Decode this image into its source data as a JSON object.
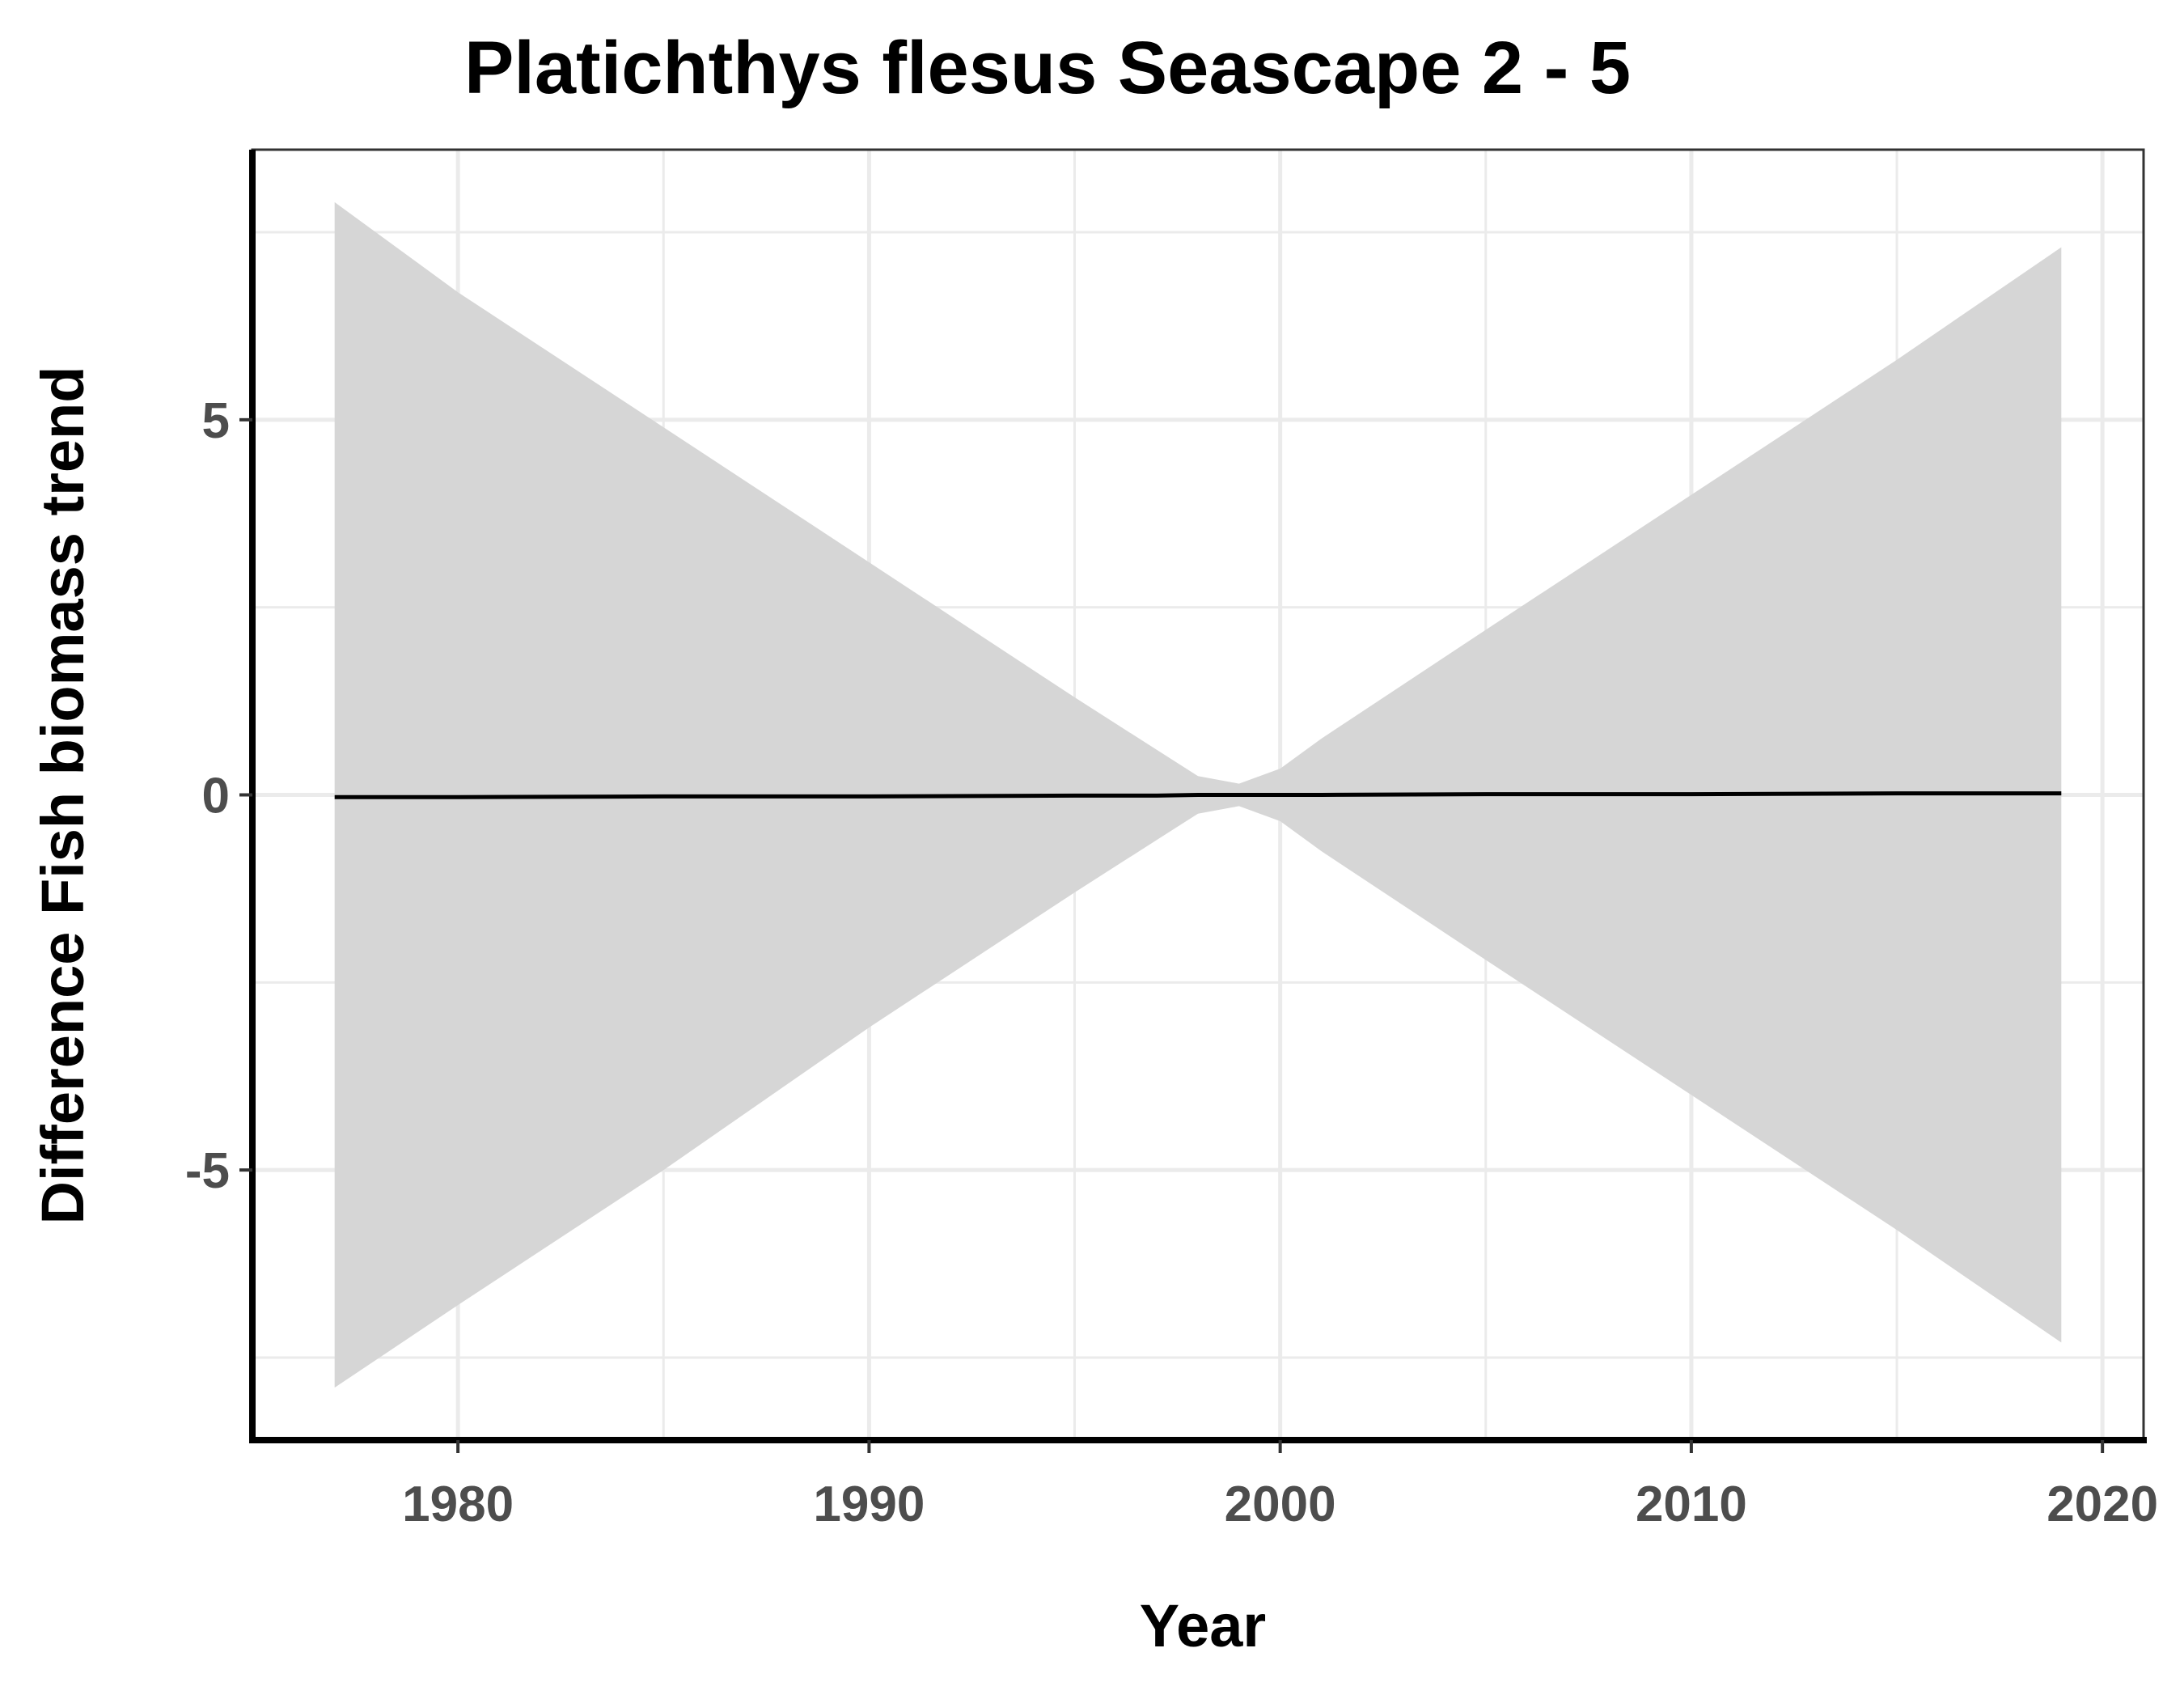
{
  "chart_data": {
    "type": "line",
    "title": "Platichthys flesus Seascape 2 - 5",
    "xlabel": "Year",
    "ylabel": "Difference Fish biomass trend",
    "xlim": [
      1975,
      2021
    ],
    "ylim": [
      -8.6,
      8.6
    ],
    "x_ticks": [
      1980,
      1990,
      2000,
      2010,
      2020
    ],
    "x_tick_labels": [
      "1980",
      "1990",
      "2000",
      "2010",
      "2020"
    ],
    "y_ticks": [
      -5,
      0,
      5
    ],
    "y_tick_labels": [
      "-5",
      "0",
      "5"
    ],
    "x_minor_ticks": [
      1985,
      1995,
      2005,
      2015
    ],
    "y_minor_ticks": [
      -7.5,
      -2.5,
      2.5,
      7.5
    ],
    "grid": true,
    "series": [
      {
        "x": [
          1977,
          1980,
          1985,
          1990,
          1995,
          1997,
          1998,
          1999,
          2000,
          2001,
          2005,
          2010,
          2015,
          2019
        ],
        "y": [
          -0.03,
          -0.03,
          -0.02,
          -0.02,
          -0.01,
          -0.01,
          0.0,
          0.0,
          0.0,
          0.0,
          0.01,
          0.01,
          0.02,
          0.02
        ],
        "ci_upper": [
          7.9,
          6.7,
          4.9,
          3.1,
          1.3,
          0.6,
          0.25,
          0.15,
          0.35,
          0.75,
          2.2,
          4.0,
          5.8,
          7.3
        ],
        "ci_lower": [
          -7.9,
          -6.8,
          -5.0,
          -3.1,
          -1.3,
          -0.6,
          -0.25,
          -0.15,
          -0.35,
          -0.75,
          -2.2,
          -4.0,
          -5.8,
          -7.3
        ],
        "color": "#000000",
        "band_color": "#d6d6d6"
      }
    ]
  },
  "colors": {
    "background": "#ffffff",
    "grid": "#ebebeb",
    "frame": "#333333",
    "axis": "#000000",
    "tick_label": "#4d4d4d"
  }
}
